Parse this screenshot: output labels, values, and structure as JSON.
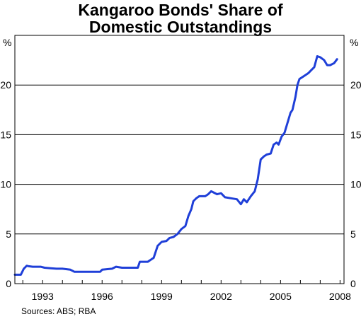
{
  "chart_data": {
    "type": "line",
    "title": [
      "Kangaroo Bonds' Share of",
      "Domestic Outstandings"
    ],
    "ylabel_left": "%",
    "ylabel_right": "%",
    "source": "Sources: ABS; RBA",
    "xlim": [
      1991.6,
      2008.2
    ],
    "ylim": [
      0,
      25
    ],
    "yticks": [
      0,
      5,
      10,
      15,
      20
    ],
    "xticks": [
      1993,
      1996,
      1999,
      2002,
      2005,
      2008
    ],
    "grid": true,
    "series": [
      {
        "color": "#1f3fd8",
        "points": [
          [
            1991.6,
            0.9
          ],
          [
            1991.9,
            0.9
          ],
          [
            1992.05,
            1.5
          ],
          [
            1992.2,
            1.8
          ],
          [
            1992.3,
            1.75
          ],
          [
            1992.5,
            1.7
          ],
          [
            1992.9,
            1.7
          ],
          [
            1993.1,
            1.6
          ],
          [
            1993.4,
            1.55
          ],
          [
            1993.7,
            1.5
          ],
          [
            1994.0,
            1.5
          ],
          [
            1994.4,
            1.4
          ],
          [
            1994.6,
            1.2
          ],
          [
            1995.0,
            1.2
          ],
          [
            1995.5,
            1.2
          ],
          [
            1995.9,
            1.2
          ],
          [
            1996.0,
            1.4
          ],
          [
            1996.5,
            1.5
          ],
          [
            1996.7,
            1.7
          ],
          [
            1997.0,
            1.6
          ],
          [
            1997.3,
            1.6
          ],
          [
            1997.8,
            1.6
          ],
          [
            1997.9,
            2.2
          ],
          [
            1998.3,
            2.2
          ],
          [
            1998.6,
            2.6
          ],
          [
            1998.8,
            3.8
          ],
          [
            1999.0,
            4.2
          ],
          [
            1999.25,
            4.3
          ],
          [
            1999.4,
            4.6
          ],
          [
            1999.6,
            4.7
          ],
          [
            1999.8,
            5.0
          ],
          [
            2000.0,
            5.5
          ],
          [
            2000.2,
            5.8
          ],
          [
            2000.35,
            6.8
          ],
          [
            2000.5,
            7.5
          ],
          [
            2000.6,
            8.3
          ],
          [
            2000.75,
            8.6
          ],
          [
            2000.9,
            8.8
          ],
          [
            2001.2,
            8.8
          ],
          [
            2001.35,
            9.0
          ],
          [
            2001.5,
            9.3
          ],
          [
            2001.8,
            9.0
          ],
          [
            2002.0,
            9.1
          ],
          [
            2002.2,
            8.7
          ],
          [
            2002.5,
            8.6
          ],
          [
            2002.8,
            8.5
          ],
          [
            2003.0,
            8.0
          ],
          [
            2003.15,
            8.5
          ],
          [
            2003.3,
            8.2
          ],
          [
            2003.5,
            8.8
          ],
          [
            2003.7,
            9.3
          ],
          [
            2003.85,
            10.5
          ],
          [
            2004.0,
            12.5
          ],
          [
            2004.15,
            12.8
          ],
          [
            2004.3,
            13.0
          ],
          [
            2004.5,
            13.1
          ],
          [
            2004.65,
            14.0
          ],
          [
            2004.8,
            14.2
          ],
          [
            2004.9,
            14.0
          ],
          [
            2005.05,
            14.8
          ],
          [
            2005.2,
            15.2
          ],
          [
            2005.35,
            16.2
          ],
          [
            2005.5,
            17.2
          ],
          [
            2005.6,
            17.5
          ],
          [
            2005.75,
            18.8
          ],
          [
            2005.85,
            20.0
          ],
          [
            2005.95,
            20.6
          ],
          [
            2006.1,
            20.8
          ],
          [
            2006.25,
            21.0
          ],
          [
            2006.4,
            21.2
          ],
          [
            2006.55,
            21.5
          ],
          [
            2006.7,
            21.8
          ],
          [
            2006.85,
            22.9
          ],
          [
            2007.0,
            22.8
          ],
          [
            2007.2,
            22.5
          ],
          [
            2007.35,
            22.0
          ],
          [
            2007.5,
            22.0
          ],
          [
            2007.7,
            22.2
          ],
          [
            2007.85,
            22.6
          ]
        ]
      }
    ]
  }
}
